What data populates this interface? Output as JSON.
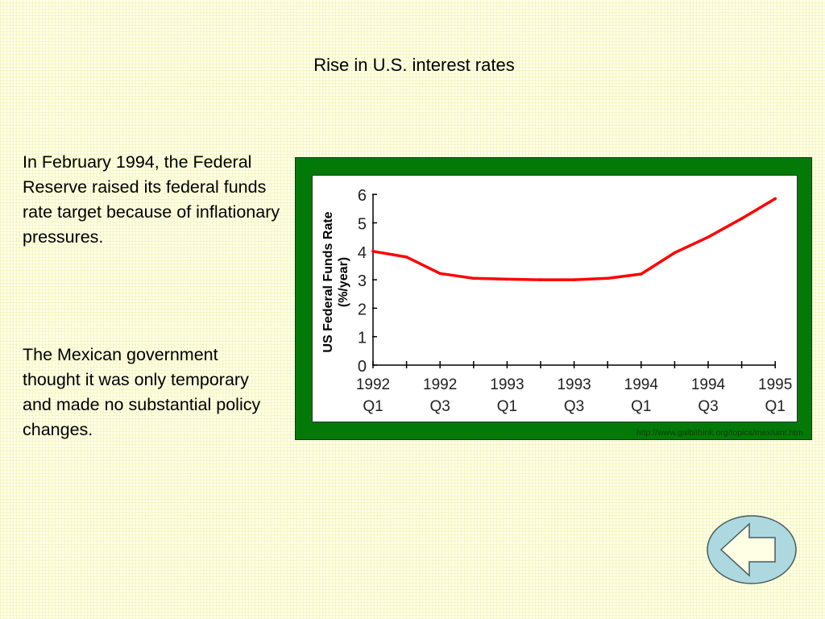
{
  "slide": {
    "title": "Rise in U.S. interest rates",
    "paragraph_1": "In February 1994, the Federal Reserve raised its federal funds rate target because of inflationary pressures.",
    "paragraph_2": "The Mexican government thought it was only temporary and made no substantial policy changes.",
    "source_url": "http://www.galbithink.org/topics/mex/uint.htm",
    "back_button_icon": "left-arrow-icon",
    "colors": {
      "frame": "#037a07",
      "line": "#ff0000",
      "button_fill": "#add8e0"
    }
  },
  "chart_data": {
    "type": "line",
    "title": "",
    "xlabel": "",
    "ylabel_line1": "US Federal Funds Rate",
    "ylabel_line2": "(%/year)",
    "ylim": [
      0,
      6
    ],
    "yticks": [
      "0",
      "1",
      "2",
      "3",
      "4",
      "5",
      "6"
    ],
    "xtick_labels": [
      {
        "year": "1992",
        "quarter": "Q1"
      },
      {
        "year": "1992",
        "quarter": "Q3"
      },
      {
        "year": "1993",
        "quarter": "Q1"
      },
      {
        "year": "1993",
        "quarter": "Q3"
      },
      {
        "year": "1994",
        "quarter": "Q1"
      },
      {
        "year": "1994",
        "quarter": "Q3"
      },
      {
        "year": "1995",
        "quarter": "Q1"
      }
    ],
    "x": [
      "1992Q1",
      "1992Q2",
      "1992Q3",
      "1992Q4",
      "1993Q1",
      "1993Q2",
      "1993Q3",
      "1993Q4",
      "1994Q1",
      "1994Q2",
      "1994Q3",
      "1994Q4",
      "1995Q1"
    ],
    "series": [
      {
        "name": "US Federal Funds Rate",
        "values": [
          4.0,
          3.8,
          3.22,
          3.05,
          3.02,
          3.0,
          3.0,
          3.05,
          3.2,
          3.95,
          4.5,
          5.15,
          5.85
        ]
      }
    ],
    "grid": false,
    "legend": "none"
  }
}
